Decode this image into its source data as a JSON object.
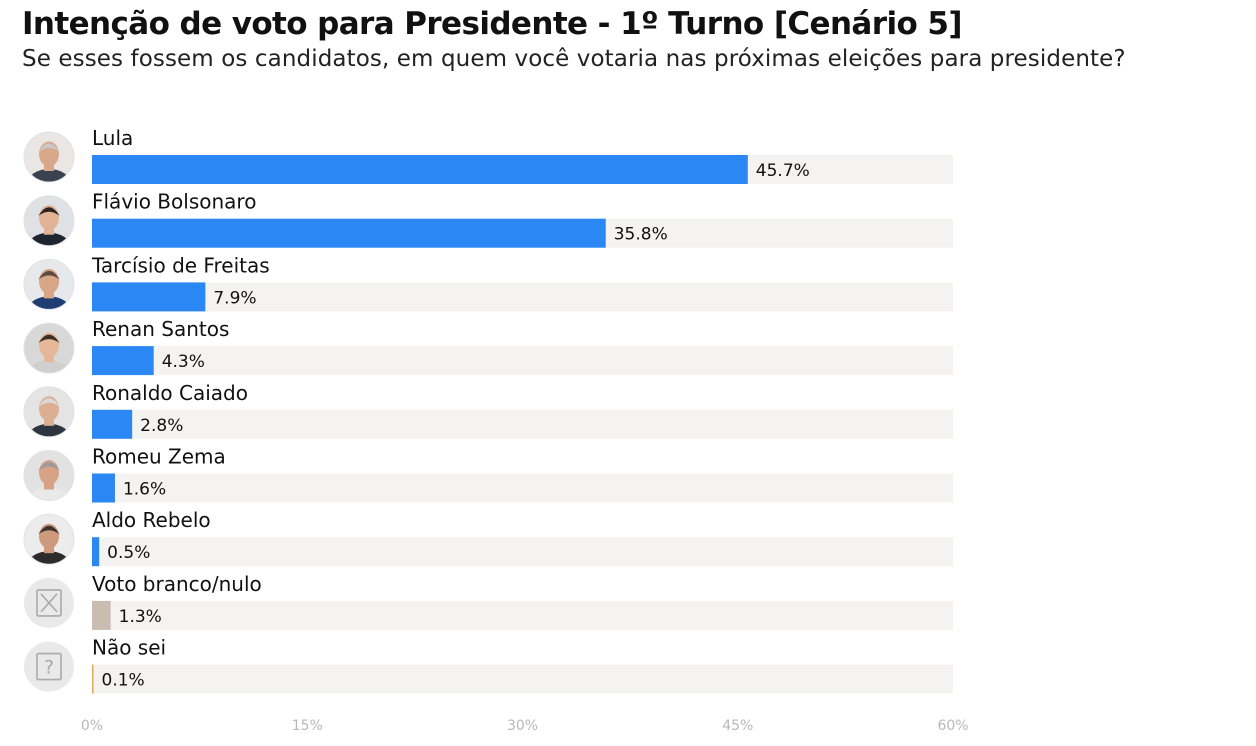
{
  "title": "Intenção de voto para Presidente - 1º Turno [Cenário 5]",
  "subtitle": "Se esses fossem os candidatos, em quem você votaria nas próximas eleições para presidente?",
  "chart_data": {
    "type": "bar",
    "orientation": "horizontal",
    "categories": [
      "Lula",
      "Flávio Bolsonaro",
      "Tarcísio de Freitas",
      "Renan Santos",
      "Ronaldo Caiado",
      "Romeu Zema",
      "Aldo Rebelo",
      "Voto branco/nulo",
      "Não sei"
    ],
    "values": [
      45.7,
      35.8,
      7.9,
      4.3,
      2.8,
      1.6,
      0.5,
      1.3,
      0.1
    ],
    "value_labels": [
      "45.7%",
      "35.8%",
      "7.9%",
      "4.3%",
      "2.8%",
      "1.6%",
      "0.5%",
      "1.3%",
      "0.1%"
    ],
    "bar_colors": [
      "#2b87f3",
      "#2b87f3",
      "#2b87f3",
      "#2b87f3",
      "#2b87f3",
      "#2b87f3",
      "#2b87f3",
      "#c9bdb2",
      "#e0a95a"
    ],
    "avatars": [
      "photo",
      "photo",
      "photo",
      "photo",
      "photo",
      "photo",
      "photo",
      "x-box-icon",
      "question-box-icon"
    ],
    "track_color": "#f4f3f1",
    "xlim": [
      0,
      60
    ],
    "xticks": [
      0,
      15,
      30,
      45,
      60
    ],
    "xtick_labels": [
      "0%",
      "15%",
      "30%",
      "45%",
      "60%"
    ],
    "grid": false,
    "legend": "none",
    "title": "Intenção de voto para Presidente - 1º Turno [Cenário 5]",
    "xlabel": "",
    "ylabel": ""
  }
}
